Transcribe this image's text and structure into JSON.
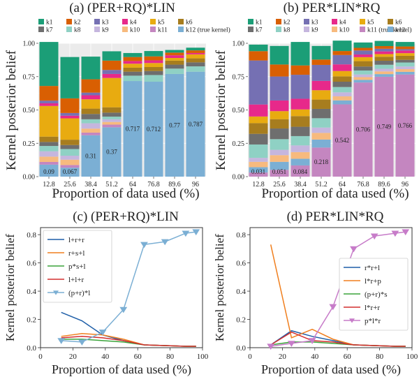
{
  "chart_data": [
    {
      "id": "a",
      "type": "bar",
      "stacked": true,
      "title": "(a)   (PER+RQ)*LIN",
      "xlabel": "Proportion of data used (%)",
      "ylabel": "Kernel posterior belief",
      "categories": [
        "12.8",
        "25.6",
        "38.4",
        "51.2",
        "64",
        "76.8",
        "89.6",
        "96"
      ],
      "ylim": [
        0,
        1
      ],
      "yticks": [
        "0.00",
        "0.25",
        "0.50",
        "0.75",
        "1.00"
      ],
      "grid": true,
      "legend_position": "top",
      "series": [
        {
          "name": "k12 (true kernel)",
          "color": "#7bafd4",
          "values": [
            0.09,
            0.067,
            0.31,
            0.37,
            0.717,
            0.712,
            0.77,
            0.787
          ]
        },
        {
          "name": "k11",
          "color": "#c486c0",
          "values": [
            0.02,
            0.02,
            0.02,
            0.02,
            0.0,
            0.0,
            0.0,
            0.0
          ]
        },
        {
          "name": "k10",
          "color": "#f7ba7e",
          "values": [
            0.04,
            0.04,
            0.03,
            0.02,
            0.0,
            0.0,
            0.0,
            0.0
          ]
        },
        {
          "name": "k9",
          "color": "#c5b6de",
          "values": [
            0.04,
            0.03,
            0.04,
            0.02,
            0.0,
            0.0,
            0.0,
            0.0
          ]
        },
        {
          "name": "k8",
          "color": "#8fd1c4",
          "values": [
            0.04,
            0.05,
            0.03,
            0.02,
            0.04,
            0.05,
            0.04,
            0.04
          ]
        },
        {
          "name": "k7",
          "color": "#6e6e6e",
          "values": [
            0.03,
            0.03,
            0.04,
            0.03,
            0.03,
            0.03,
            0.03,
            0.03
          ]
        },
        {
          "name": "k6",
          "color": "#a77d1e",
          "values": [
            0.04,
            0.04,
            0.04,
            0.04,
            0.03,
            0.03,
            0.03,
            0.03
          ]
        },
        {
          "name": "k5",
          "color": "#e8ab10",
          "values": [
            0.23,
            0.16,
            0.07,
            0.22,
            0.03,
            0.03,
            0.02,
            0.03
          ]
        },
        {
          "name": "k4",
          "color": "#e7298a",
          "values": [
            0.02,
            0.02,
            0.03,
            0.03,
            0.02,
            0.02,
            0.02,
            0.01
          ]
        },
        {
          "name": "k3",
          "color": "#7570b3",
          "values": [
            0.02,
            0.02,
            0.02,
            0.03,
            0.0,
            0.0,
            0.0,
            0.0
          ]
        },
        {
          "name": "k2",
          "color": "#d95f02",
          "values": [
            0.11,
            0.11,
            0.1,
            0.07,
            0.03,
            0.03,
            0.02,
            0.02
          ]
        },
        {
          "name": "k1",
          "color": "#1b9e77",
          "values": [
            0.33,
            0.31,
            0.17,
            0.07,
            0.03,
            0.04,
            0.02,
            0.02
          ]
        }
      ],
      "labelled_series": "k12 (true kernel)",
      "bar_labels": [
        "0.09",
        "0.067",
        "0.31",
        "0.37",
        "0.717",
        "0.712",
        "0.77",
        "0.787"
      ],
      "legend_entries": [
        "k1",
        "k2",
        "k3",
        "k4",
        "k5",
        "k6",
        "k7",
        "k8",
        "k9",
        "k10",
        "k11",
        "k12 (true kernel)"
      ]
    },
    {
      "id": "b",
      "type": "bar",
      "stacked": true,
      "title": "(b)   PER*LIN*RQ",
      "xlabel": "Proportion of data used (%)",
      "ylabel": "Kernel posterior belief",
      "categories": [
        "12.8",
        "25.6",
        "38.4",
        "51.2",
        "64",
        "76.8",
        "89.6",
        "96"
      ],
      "ylim": [
        0,
        1
      ],
      "yticks": [
        "0.00",
        "0.25",
        "0.50",
        "0.75",
        "1.00"
      ],
      "grid": true,
      "legend_position": "top",
      "series": [
        {
          "name": "k11 (true kernel)",
          "color": "#c486c0",
          "values": [
            0.031,
            0.051,
            0.084,
            0.218,
            0.542,
            0.706,
            0.749,
            0.766
          ]
        },
        {
          "name": "k12",
          "color": "#7bafd4",
          "values": [
            0.04,
            0.06,
            0.05,
            0.06,
            0.03,
            0.02,
            0.02,
            0.02
          ]
        },
        {
          "name": "k10",
          "color": "#f7ba7e",
          "values": [
            0.04,
            0.05,
            0.05,
            0.05,
            0.03,
            0.02,
            0.02,
            0.02
          ]
        },
        {
          "name": "k9",
          "color": "#c5b6de",
          "values": [
            0.03,
            0.04,
            0.05,
            0.04,
            0.03,
            0.02,
            0.02,
            0.02
          ]
        },
        {
          "name": "k8",
          "color": "#8fd1c4",
          "values": [
            0.1,
            0.08,
            0.07,
            0.07,
            0.04,
            0.03,
            0.03,
            0.03
          ]
        },
        {
          "name": "k7",
          "color": "#6e6e6e",
          "values": [
            0.08,
            0.08,
            0.07,
            0.07,
            0.04,
            0.03,
            0.03,
            0.02
          ]
        },
        {
          "name": "k6",
          "color": "#a77d1e",
          "values": [
            0.08,
            0.07,
            0.08,
            0.07,
            0.04,
            0.04,
            0.03,
            0.03
          ]
        },
        {
          "name": "k5",
          "color": "#e8ab10",
          "values": [
            0.05,
            0.06,
            0.05,
            0.07,
            0.04,
            0.03,
            0.02,
            0.02
          ]
        },
        {
          "name": "k4",
          "color": "#e7298a",
          "values": [
            0.09,
            0.08,
            0.08,
            0.07,
            0.05,
            0.02,
            0.02,
            0.02
          ]
        },
        {
          "name": "k3",
          "color": "#7570b3",
          "values": [
            0.33,
            0.18,
            0.18,
            0.12,
            0.07,
            0.03,
            0.02,
            0.01
          ]
        },
        {
          "name": "k2",
          "color": "#d95f02",
          "values": [
            0.07,
            0.09,
            0.07,
            0.04,
            0.03,
            0.02,
            0.02,
            0.02
          ]
        },
        {
          "name": "k1",
          "color": "#1b9e77",
          "values": [
            0.049,
            0.139,
            0.176,
            0.102,
            0.078,
            0.04,
            0.039,
            0.034
          ]
        }
      ],
      "labelled_series": "k11 (true kernel)",
      "bar_labels": [
        "0.031",
        "0.051",
        "0.084",
        "0.218",
        "0.542",
        "0.706",
        "0.749",
        "0.766"
      ],
      "legend_entries": [
        "k1",
        "k2",
        "k3",
        "k4",
        "k5",
        "k6",
        "k7",
        "k8",
        "k9",
        "k10",
        "k11 (true kernel)",
        "k12"
      ]
    },
    {
      "id": "c",
      "type": "line",
      "title": "(c)   (PER+RQ)*LIN",
      "xlabel": "Proportion of data used (%)",
      "ylabel": "Kernel posterior belief",
      "xlim": [
        0,
        100
      ],
      "ylim": [
        0,
        0.85
      ],
      "xticks": [
        0,
        20,
        40,
        60,
        80,
        100
      ],
      "yticks": [
        0.0,
        0.2,
        0.4,
        0.6,
        0.8
      ],
      "grid": false,
      "legend_position": "top-left",
      "x": [
        12.8,
        25.6,
        38.4,
        51.2,
        64,
        76.8,
        89.6,
        96
      ],
      "series": [
        {
          "name": "l+r+r",
          "color": "#1f5fa8",
          "values": [
            0.25,
            0.19,
            0.09,
            0.05,
            0.02,
            0.015,
            0.01,
            0.01
          ]
        },
        {
          "name": "r+s+l",
          "color": "#f07f1e",
          "values": [
            0.08,
            0.1,
            0.09,
            0.06,
            0.02,
            0.015,
            0.01,
            0.01
          ]
        },
        {
          "name": "p*s+l",
          "color": "#3aa33a",
          "values": [
            0.06,
            0.06,
            0.05,
            0.04,
            0.02,
            0.015,
            0.01,
            0.01
          ]
        },
        {
          "name": "l+l+r",
          "color": "#d32f2f",
          "values": [
            0.07,
            0.08,
            0.07,
            0.05,
            0.02,
            0.015,
            0.01,
            0.01
          ]
        },
        {
          "name": "(p+r)*l",
          "color": "#7bafd4",
          "marker": "triangle-down",
          "values": [
            0.05,
            0.04,
            0.11,
            0.27,
            0.73,
            0.75,
            0.81,
            0.82
          ]
        }
      ]
    },
    {
      "id": "d",
      "type": "line",
      "title": "(d)   PER*LIN*RQ",
      "xlabel": "Proportion of data used (%)",
      "ylabel": "Kernel posterior belief",
      "xlim": [
        0,
        100
      ],
      "ylim": [
        0,
        0.85
      ],
      "xticks": [
        0,
        20,
        40,
        60,
        80,
        100
      ],
      "yticks": [
        0.0,
        0.2,
        0.4,
        0.6,
        0.8
      ],
      "grid": false,
      "legend_position": "center-right",
      "x": [
        12.8,
        25.6,
        38.4,
        51.2,
        64,
        76.8,
        89.6,
        96
      ],
      "series": [
        {
          "name": "r*r+l",
          "color": "#1f5fa8",
          "values": [
            0.02,
            0.12,
            0.08,
            0.05,
            0.02,
            0.015,
            0.01,
            0.01
          ]
        },
        {
          "name": "l*r+p",
          "color": "#f07f1e",
          "values": [
            0.73,
            0.07,
            0.13,
            0.06,
            0.02,
            0.015,
            0.01,
            0.01
          ]
        },
        {
          "name": "(p+r)*s",
          "color": "#3aa33a",
          "values": [
            0.02,
            0.04,
            0.04,
            0.03,
            0.02,
            0.015,
            0.01,
            0.01
          ]
        },
        {
          "name": "l*r+r",
          "color": "#d32f2f",
          "values": [
            0.02,
            0.11,
            0.05,
            0.04,
            0.02,
            0.015,
            0.01,
            0.01
          ]
        },
        {
          "name": "p*l*r",
          "color": "#c77cc9",
          "marker": "triangle-down",
          "values": [
            0.01,
            0.03,
            0.05,
            0.29,
            0.7,
            0.79,
            0.81,
            0.82
          ]
        }
      ]
    }
  ]
}
